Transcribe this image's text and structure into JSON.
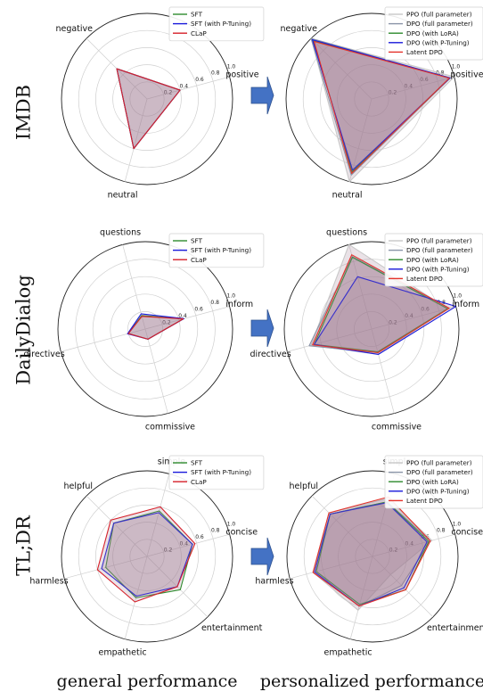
{
  "row_labels": [
    "IMDB",
    "DailyDialog",
    "TL;DR"
  ],
  "column_labels": [
    "general performance",
    "personalized performance"
  ],
  "colors": {
    "SFT": "#2e8b2e",
    "SFT (with P-Tuning)": "#1a1adb",
    "CLaP": "#d6202a",
    "PPO (full parameter)": "#c8c8c8",
    "DPO (full parameter)": "#8a95a8",
    "DPO (with LoRA)": "#2e8b2e",
    "DPO (with P-Tuning)": "#1a1adb",
    "Latent DPO": "#e5322a",
    "fill": "#9e7c93",
    "arrow": "#4472c4"
  },
  "chart_data": [
    {
      "type": "radar",
      "panel": "IMDB-general",
      "rmax": 1.0,
      "ticks": [
        "0.2",
        "0.4",
        "0.6",
        "0.8",
        "1.0"
      ],
      "axes": [
        "positive",
        "negative",
        "neutral"
      ],
      "series": [
        {
          "name": "SFT",
          "values": [
            0.4,
            0.5,
            0.6
          ]
        },
        {
          "name": "SFT (with P-Tuning)",
          "values": [
            0.4,
            0.5,
            0.6
          ]
        },
        {
          "name": "CLaP",
          "values": [
            0.4,
            0.5,
            0.6
          ]
        }
      ]
    },
    {
      "type": "radar",
      "panel": "IMDB-personalized",
      "rmax": 1.0,
      "ticks": [
        "0.2",
        "0.4",
        "0.6",
        "0.8",
        "1.0"
      ],
      "axes": [
        "positive",
        "negative",
        "neutral"
      ],
      "series": [
        {
          "name": "PPO (full parameter)",
          "values": [
            1.0,
            1.0,
            1.0
          ]
        },
        {
          "name": "DPO (full parameter)",
          "values": [
            0.95,
            1.0,
            0.92
          ]
        },
        {
          "name": "DPO (with LoRA)",
          "values": [
            0.95,
            0.96,
            0.88
          ]
        },
        {
          "name": "DPO (with P-Tuning)",
          "values": [
            0.95,
            0.98,
            0.86
          ]
        },
        {
          "name": "Latent DPO",
          "values": [
            0.94,
            0.95,
            0.9
          ]
        }
      ]
    },
    {
      "type": "radar",
      "panel": "DailyDialog-general",
      "rmax": 1.0,
      "ticks": [
        "0.2",
        "0.4",
        "0.6",
        "0.8",
        "1.0"
      ],
      "axes": [
        "inform",
        "questions",
        "directives",
        "commissive"
      ],
      "series": [
        {
          "name": "SFT",
          "values": [
            0.45,
            0.16,
            0.2,
            0.12
          ]
        },
        {
          "name": "SFT (with P-Tuning)",
          "values": [
            0.46,
            0.18,
            0.21,
            0.12
          ]
        },
        {
          "name": "CLaP",
          "values": [
            0.45,
            0.15,
            0.2,
            0.12
          ]
        }
      ]
    },
    {
      "type": "radar",
      "panel": "DailyDialog-personalized",
      "rmax": 1.0,
      "ticks": [
        "0.2",
        "0.4",
        "0.6",
        "0.8",
        "1.0"
      ],
      "axes": [
        "inform",
        "questions",
        "directives",
        "commissive"
      ],
      "series": [
        {
          "name": "PPO (full parameter)",
          "values": [
            0.9,
            1.0,
            0.72,
            0.3
          ]
        },
        {
          "name": "DPO (full parameter)",
          "values": [
            0.92,
            0.86,
            0.74,
            0.28
          ]
        },
        {
          "name": "DPO (with LoRA)",
          "values": [
            0.9,
            0.85,
            0.68,
            0.27
          ]
        },
        {
          "name": "DPO (with P-Tuning)",
          "values": [
            1.0,
            0.62,
            0.68,
            0.3
          ]
        },
        {
          "name": "Latent DPO",
          "values": [
            0.92,
            0.88,
            0.7,
            0.28
          ]
        }
      ]
    },
    {
      "type": "radar",
      "panel": "TL;DR-general",
      "rmax": 1.0,
      "ticks": [
        "0.2",
        "0.4",
        "0.6",
        "0.8",
        "1.0"
      ],
      "axes": [
        "simple",
        "helpful",
        "harmless",
        "empathetic",
        "entertainment",
        "concise"
      ],
      "series": [
        {
          "name": "SFT",
          "values": [
            0.55,
            0.55,
            0.5,
            0.5,
            0.55,
            0.55
          ]
        },
        {
          "name": "SFT (with P-Tuning)",
          "values": [
            0.53,
            0.55,
            0.55,
            0.48,
            0.5,
            0.55
          ]
        },
        {
          "name": "CLaP",
          "values": [
            0.6,
            0.6,
            0.6,
            0.55,
            0.5,
            0.58
          ]
        }
      ]
    },
    {
      "type": "radar",
      "panel": "TL;DR-personalized",
      "rmax": 1.0,
      "ticks": [
        "0.2",
        "0.4",
        "0.6",
        "0.8",
        "1.0"
      ],
      "axes": [
        "simple",
        "helpful",
        "harmless",
        "empathetic",
        "entertainment",
        "concise"
      ],
      "series": [
        {
          "name": "PPO (full parameter)",
          "values": [
            0.7,
            0.72,
            0.72,
            0.65,
            0.3,
            0.72
          ]
        },
        {
          "name": "DPO (full parameter)",
          "values": [
            0.66,
            0.7,
            0.72,
            0.6,
            0.48,
            0.7
          ]
        },
        {
          "name": "DPO (with LoRA)",
          "values": [
            0.66,
            0.7,
            0.68,
            0.58,
            0.55,
            0.68
          ]
        },
        {
          "name": "DPO (with P-Tuning)",
          "values": [
            0.65,
            0.7,
            0.7,
            0.6,
            0.52,
            0.66
          ]
        },
        {
          "name": "Latent DPO",
          "values": [
            0.72,
            0.72,
            0.72,
            0.6,
            0.55,
            0.7
          ]
        }
      ]
    }
  ]
}
